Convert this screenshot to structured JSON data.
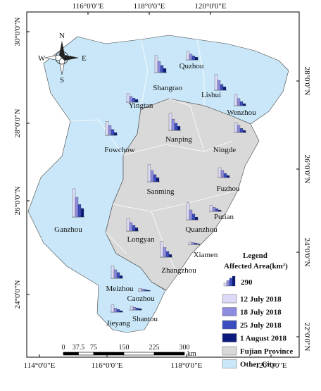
{
  "map": {
    "top_lon_labels": [
      "116°0'0\"E",
      "118°0'0\"E",
      "120°0'0\"E"
    ],
    "bottom_lon_labels": [
      "114°0'0\"E",
      "116°0'0\"E",
      "118°0'0\"E",
      "120°0'0\"E"
    ],
    "left_lat_labels": [
      "30°0'0\"N",
      "28°0'0\"N",
      "26°0'0\"N",
      "24°0'0\"N"
    ],
    "right_lat_labels": [
      "28°0'0\"N",
      "26°0'0\"N",
      "24°0'0\"N",
      "22°0'0\"N"
    ],
    "compass": {
      "n": "N",
      "s": "S",
      "e": "E",
      "w": "W"
    },
    "scale_bar": {
      "ticks": [
        0,
        37.5,
        75,
        150,
        225,
        300
      ],
      "unit": "km"
    },
    "cities": [
      {
        "name": "Quzhou",
        "values": [
          250,
          170,
          120,
          80
        ]
      },
      {
        "name": "Shangrao",
        "values": [
          500,
          330,
          210,
          120
        ]
      },
      {
        "name": "Lishui",
        "values": [
          460,
          290,
          170,
          100
        ]
      },
      {
        "name": "Yingtan",
        "values": [
          250,
          170,
          120,
          80
        ]
      },
      {
        "name": "Wenzhou",
        "values": [
          330,
          210,
          120,
          60
        ]
      },
      {
        "name": "Fowchow",
        "values": [
          410,
          290,
          170,
          80
        ]
      },
      {
        "name": "Nanping",
        "values": [
          500,
          330,
          210,
          120
        ]
      },
      {
        "name": "Ningde",
        "values": [
          290,
          210,
          120,
          60
        ]
      },
      {
        "name": "Sanming",
        "values": [
          500,
          330,
          210,
          120
        ]
      },
      {
        "name": "Fuzhou",
        "values": [
          290,
          210,
          120,
          60
        ]
      },
      {
        "name": "Ganzhou",
        "values": [
          830,
          580,
          370,
          250
        ]
      },
      {
        "name": "Putian",
        "values": [
          170,
          120,
          80,
          40
        ]
      },
      {
        "name": "Quanzhou",
        "values": [
          500,
          290,
          170,
          80
        ]
      },
      {
        "name": "Longyan",
        "values": [
          370,
          250,
          170,
          100
        ]
      },
      {
        "name": "Xiamen",
        "values": [
          80,
          60,
          40,
          20
        ]
      },
      {
        "name": "Zhangzhou",
        "values": [
          460,
          290,
          170,
          80
        ]
      },
      {
        "name": "Meizhou",
        "values": [
          370,
          250,
          170,
          80
        ]
      },
      {
        "name": "Caozhou",
        "values": [
          80,
          60,
          40,
          20
        ]
      },
      {
        "name": "Shantou",
        "values": [
          120,
          80,
          60,
          40
        ]
      },
      {
        "name": "Jieyang",
        "values": [
          210,
          120,
          80,
          40
        ]
      }
    ],
    "legend": {
      "title": "Legend",
      "subtitle": "Affected Area(km²)",
      "reference_value": 290,
      "series": [
        {
          "name": "12 July 2018",
          "color": "#dcdaf6"
        },
        {
          "name": "18 July 2018",
          "color": "#8d8ce0"
        },
        {
          "name": "25 July 2018",
          "color": "#3a4cc0"
        },
        {
          "name": "1 August 2018",
          "color": "#0b1a7c"
        }
      ],
      "regions": [
        {
          "name": "Fujian Province",
          "color": "#d9d9d9"
        },
        {
          "name": "Other City",
          "color": "#c9e7f8"
        }
      ]
    }
  }
}
